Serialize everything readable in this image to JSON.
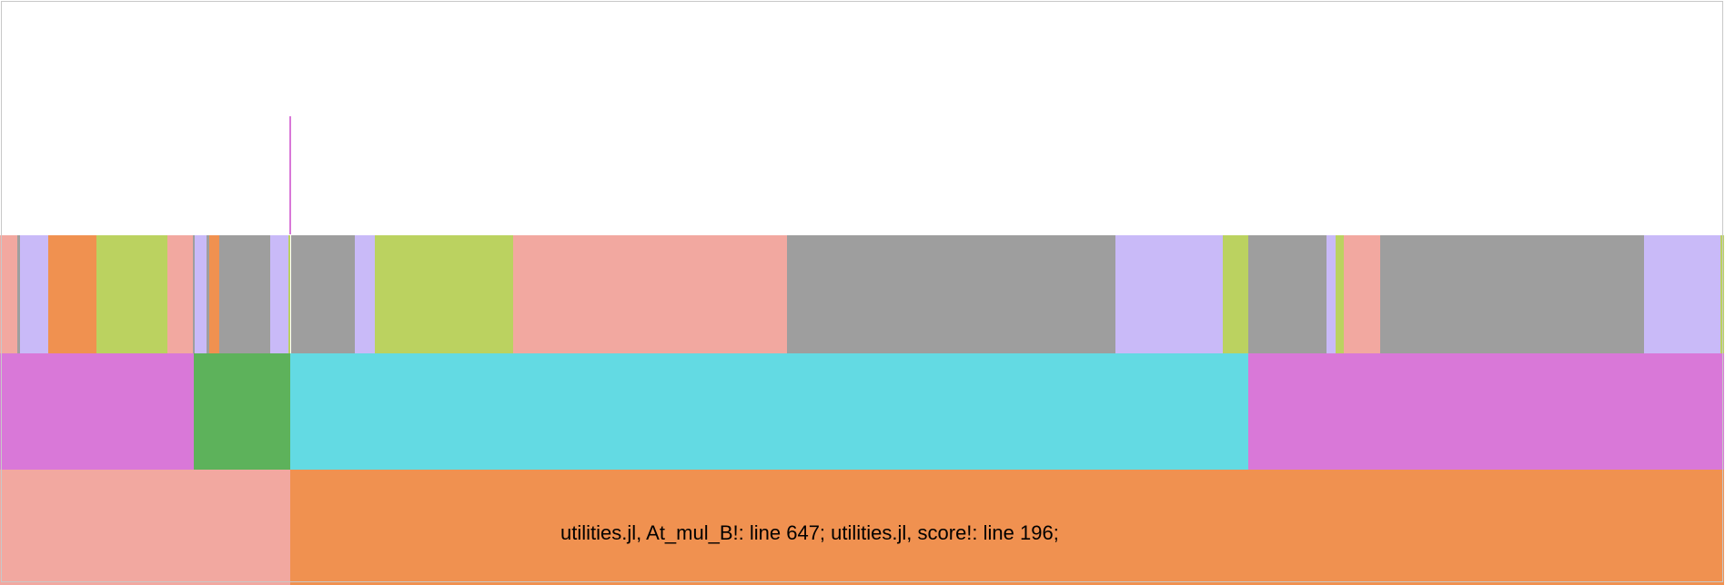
{
  "chart_data": {
    "type": "flamegraph",
    "title": "",
    "xlabel": "",
    "ylabel": "",
    "x_range": [
      0,
      1896
    ],
    "levels": 4,
    "rows": [
      {
        "level": 0,
        "blocks": [
          {
            "start": 0,
            "width": 319,
            "color": "#f2a8a0"
          },
          {
            "start": 319,
            "width": 1576,
            "color": "#f09150"
          }
        ]
      },
      {
        "level": 1,
        "blocks": [
          {
            "start": 0,
            "width": 213,
            "color": "#d978d8"
          },
          {
            "start": 213,
            "width": 106,
            "color": "#5db25b"
          },
          {
            "start": 319,
            "width": 1053,
            "color": "#63dae3"
          },
          {
            "start": 1372,
            "width": 523,
            "color": "#d978d8"
          }
        ]
      },
      {
        "level": 2,
        "blocks": [
          {
            "start": 0,
            "width": 19,
            "color": "#f2a8a0"
          },
          {
            "start": 19,
            "width": 3,
            "color": "#9e9e9e"
          },
          {
            "start": 22,
            "width": 31,
            "color": "#c9baf8"
          },
          {
            "start": 53,
            "width": 53,
            "color": "#f09150"
          },
          {
            "start": 106,
            "width": 78,
            "color": "#bbd260"
          },
          {
            "start": 184,
            "width": 28,
            "color": "#f2a8a0"
          },
          {
            "start": 212,
            "width": 2,
            "color": "#9e9e9e"
          },
          {
            "start": 214,
            "width": 13,
            "color": "#c9baf8"
          },
          {
            "start": 227,
            "width": 3,
            "color": "#9e9e9e"
          },
          {
            "start": 230,
            "width": 11,
            "color": "#f09150"
          },
          {
            "start": 241,
            "width": 56,
            "color": "#9e9e9e"
          },
          {
            "start": 297,
            "width": 20,
            "color": "#c9baf8"
          },
          {
            "start": 317,
            "width": 2,
            "color": "#bbd260"
          },
          {
            "start": 320,
            "width": 70,
            "color": "#9e9e9e"
          },
          {
            "start": 390,
            "width": 22,
            "color": "#c9baf8"
          },
          {
            "start": 412,
            "width": 152,
            "color": "#bbd260"
          },
          {
            "start": 564,
            "width": 301,
            "color": "#f2a8a0"
          },
          {
            "start": 865,
            "width": 361,
            "color": "#9e9e9e"
          },
          {
            "start": 1226,
            "width": 118,
            "color": "#c9baf8"
          },
          {
            "start": 1344,
            "width": 28,
            "color": "#bbd260"
          },
          {
            "start": 1372,
            "width": 86,
            "color": "#9e9e9e"
          },
          {
            "start": 1458,
            "width": 10,
            "color": "#c9baf8"
          },
          {
            "start": 1468,
            "width": 9,
            "color": "#bbd260"
          },
          {
            "start": 1477,
            "width": 40,
            "color": "#f2a8a0"
          },
          {
            "start": 1517,
            "width": 290,
            "color": "#9e9e9e"
          },
          {
            "start": 1807,
            "width": 84,
            "color": "#c9baf8"
          },
          {
            "start": 1891,
            "width": 4,
            "color": "#bbd260"
          }
        ]
      },
      {
        "level": 3,
        "blocks": [
          {
            "start": 318,
            "width": 2,
            "color": "#d978d8"
          }
        ]
      }
    ]
  },
  "tooltip": {
    "text": "utilities.jl, At_mul_B!: line 647; utilities.jl, score!: line 196;"
  }
}
